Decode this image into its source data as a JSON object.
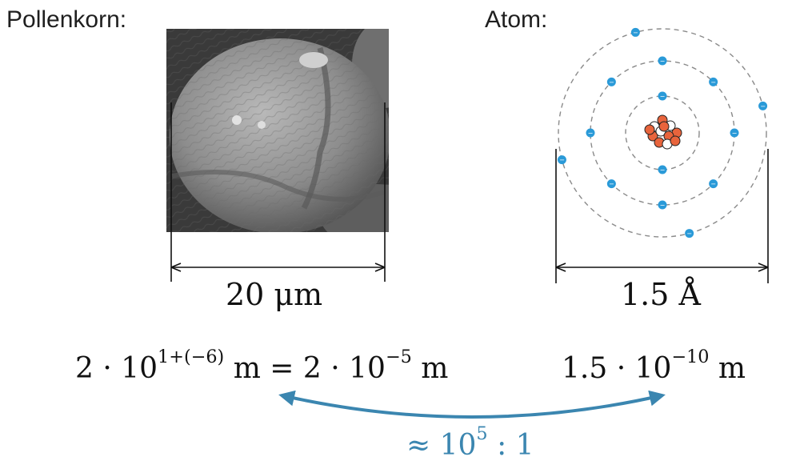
{
  "pollen": {
    "title": "Pollenkorn:",
    "size_label": "20 μm",
    "expr": {
      "coef": "2 · 10",
      "exp1": "1+(−6)",
      "mid": " m = 2 · 10",
      "exp2": "−5",
      "unit": " m"
    }
  },
  "atom": {
    "title": "Atom:",
    "size_label": "1.5 Å",
    "expr": {
      "coef": "1.5 · 10",
      "exp": "−10",
      "unit": " m"
    },
    "electron_sign": "−"
  },
  "comparison": {
    "prefix": "≈ 10",
    "exp": "5",
    "suffix": " : 1"
  },
  "colors": {
    "arrow": "#3b86b0",
    "electron": "#2a9ad8",
    "proton": "#e8643c",
    "orbit": "#8a8a8a"
  }
}
